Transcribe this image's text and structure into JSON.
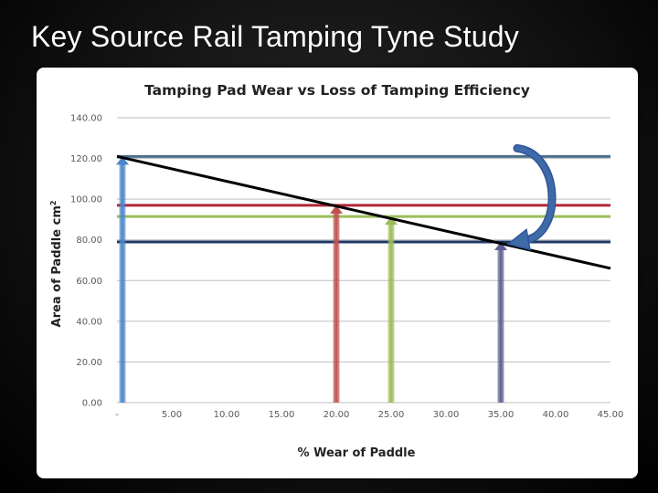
{
  "slide": {
    "title": "Key Source Rail Tamping Tyne Study"
  },
  "chart_data": {
    "type": "line",
    "title": "Tamping Pad Wear vs Loss of Tamping Efficiency",
    "xlabel": "% Wear of Paddle",
    "ylabel": "Area of Paddle cm",
    "ylabel_sup": "2",
    "xlim": [
      0,
      45
    ],
    "ylim": [
      0,
      140
    ],
    "x_ticks": [
      0,
      5,
      10,
      15,
      20,
      25,
      30,
      35,
      40,
      45
    ],
    "x_tick_labels": [
      "-",
      "5.00",
      "10.00",
      "15.00",
      "20.00",
      "25.00",
      "30.00",
      "35.00",
      "40.00",
      "45.00"
    ],
    "y_ticks": [
      0,
      20,
      40,
      60,
      80,
      100,
      120,
      140
    ],
    "y_tick_labels": [
      "0.00",
      "20.00",
      "40.00",
      "60.00",
      "80.00",
      "100.00",
      "120.00",
      "140.00"
    ],
    "grid": true,
    "trend_line": {
      "x": [
        0,
        45
      ],
      "y": [
        121,
        66
      ],
      "color": "#000000"
    },
    "reference_lines": [
      {
        "y": 121,
        "color": "#4a6f8a"
      },
      {
        "y": 97,
        "color": "#b0263a"
      },
      {
        "y": 91.5,
        "color": "#9bbf5a"
      },
      {
        "y": 79,
        "color": "#1f3864"
      }
    ],
    "markers": [
      {
        "x": 0.5,
        "y": 121,
        "color": "#4a86c8"
      },
      {
        "x": 20,
        "y": 97,
        "color": "#c0504d"
      },
      {
        "x": 25,
        "y": 91.5,
        "color": "#9bbb59"
      },
      {
        "x": 35,
        "y": 79,
        "color": "#5a5f8f"
      }
    ],
    "annotation_arrow": {
      "from": [
        36.5,
        125
      ],
      "to": [
        36.5,
        77
      ],
      "color": "#3f6aa8"
    }
  }
}
